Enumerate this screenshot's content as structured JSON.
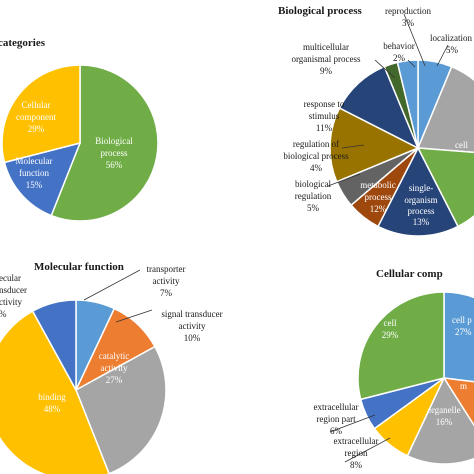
{
  "colors": {
    "blue": "#4472C4",
    "lightblue": "#5B9BD5",
    "orange": "#ED7D31",
    "gray": "#A5A5A5",
    "yellow": "#FFC000",
    "green": "#70AD47",
    "darkblue": "#264478",
    "darkgreen": "#43682B",
    "brown": "#9E480E",
    "olive": "#997300",
    "darkgray": "#636363"
  },
  "chart_data": [
    {
      "type": "pie",
      "title": "categories",
      "slices": [
        {
          "label": "Biological process",
          "value": 56,
          "pct": "56%",
          "color": "green"
        },
        {
          "label": "Molecular function",
          "value": 15,
          "pct": "15%",
          "color": "blue"
        },
        {
          "label": "Cellular component",
          "value": 29,
          "pct": "29%",
          "color": "yellow"
        }
      ]
    },
    {
      "type": "pie",
      "title": "Biological process",
      "slices": [
        {
          "label": "localization",
          "value": 5,
          "pct": "5%",
          "color": "lightblue"
        },
        {
          "label": "cellular process",
          "value": 16,
          "pct": "",
          "color": "gray"
        },
        {
          "label": "single-organism process",
          "value": 13,
          "pct": "13%",
          "color": "green"
        },
        {
          "label": "metabolic process",
          "value": 12,
          "pct": "12%",
          "color": "darkblue"
        },
        {
          "label": "biological regulation",
          "value": 5,
          "pct": "5%",
          "color": "brown"
        },
        {
          "label": "regulation of biological process",
          "value": 4,
          "pct": "4%",
          "color": "darkgray"
        },
        {
          "label": "response to stimulus",
          "value": 11,
          "pct": "11%",
          "color": "olive"
        },
        {
          "label": "multicellular organismal process",
          "value": 9,
          "pct": "9%",
          "color": "darkblue"
        },
        {
          "label": "behavior",
          "value": 2,
          "pct": "2%",
          "color": "darkgreen"
        },
        {
          "label": "reproduction",
          "value": 3,
          "pct": "3%",
          "color": "lightblue"
        }
      ]
    },
    {
      "type": "pie",
      "title": "Molecular function",
      "slices": [
        {
          "label": "transporter activity",
          "value": 7,
          "pct": "7%",
          "color": "lightblue"
        },
        {
          "label": "signal transducer activity",
          "value": 10,
          "pct": "10%",
          "color": "orange"
        },
        {
          "label": "catalytic activity",
          "value": 27,
          "pct": "27%",
          "color": "gray"
        },
        {
          "label": "binding",
          "value": 48,
          "pct": "48%",
          "color": "yellow"
        },
        {
          "label": "molecular transducer activity",
          "value": 8,
          "pct": "",
          "color": "blue"
        }
      ]
    },
    {
      "type": "pie",
      "title": "Cellular comp",
      "slices": [
        {
          "label": "cell part",
          "value": 27,
          "pct": "27%",
          "color": "lightblue"
        },
        {
          "label": "membrane",
          "value": 14,
          "pct": "",
          "color": "orange"
        },
        {
          "label": "organelle",
          "value": 16,
          "pct": "16%",
          "color": "gray"
        },
        {
          "label": "extracellular region",
          "value": 8,
          "pct": "8%",
          "color": "yellow"
        },
        {
          "label": "extracellular region part",
          "value": 6,
          "pct": "6%",
          "color": "blue"
        },
        {
          "label": "cell",
          "value": 29,
          "pct": "29%",
          "color": "green"
        }
      ]
    }
  ],
  "text": {
    "c1_title": "categories",
    "c1_cell_l1": "Cellular",
    "c1_cell_l2": "component",
    "c1_cell_pct": "29%",
    "c1_mol_l1": "Molecular",
    "c1_mol_l2": "function",
    "c1_mol_pct": "15%",
    "c1_bio_l1": "Biological",
    "c1_bio_l2": "process",
    "c1_bio_pct": "56%",
    "c2_title": "Biological process",
    "c2_repro": "reproduction",
    "c2_repro_pct": "3%",
    "c2_local": "localization",
    "c2_local_pct": "5%",
    "c2_behav": "behavior",
    "c2_behav_pct": "2%",
    "c2_multi_l1": "multicellular",
    "c2_multi_l2": "organismal process",
    "c2_multi_pct": "9%",
    "c2_resp_l1": "response to",
    "c2_resp_l2": "stimulus",
    "c2_resp_pct": "11%",
    "c2_reg_l1": "regulation of",
    "c2_reg_l2": "biological process",
    "c2_reg_pct": "4%",
    "c2_bioreg_l1": "biological",
    "c2_bioreg_l2": "regulation",
    "c2_bioreg_pct": "5%",
    "c2_metab_l1": "metabolic",
    "c2_metab_l2": "process",
    "c2_metab_pct": "12%",
    "c2_single_l1": "single-",
    "c2_single_l2": "organism",
    "c2_single_l3": "process",
    "c2_single_pct": "13%",
    "c2_cell": "cell",
    "c3_title": "Molecular function",
    "c3_trans_l1": "transporter",
    "c3_trans_l2": "activity",
    "c3_trans_pct": "7%",
    "c3_signal_l1": "signal transducer",
    "c3_signal_l2": "activity",
    "c3_signal_pct": "10%",
    "c3_cat_l1": "catalytic",
    "c3_cat_l2": "activity",
    "c3_cat_pct": "27%",
    "c3_bind": "binding",
    "c3_bind_pct": "48%",
    "c3_moltr_l1": "ecular",
    "c3_moltr_l2": "nsducer",
    "c3_moltr_l3": "ctivity",
    "c3_moltr_pct": "%",
    "c4_title": "Cellular comp",
    "c4_cellpart_l1": "cell p",
    "c4_cellpart_pct": "27%",
    "c4_cell": "cell",
    "c4_cell_pct": "29%",
    "c4_mem": "m",
    "c4_org": "organelle",
    "c4_org_pct": "16%",
    "c4_exrp_l1": "extracellular",
    "c4_exrp_l2": "region part",
    "c4_exrp_pct": "6%",
    "c4_exr_l1": "extracellular",
    "c4_exr_l2": "region",
    "c4_exr_pct": "8%"
  }
}
